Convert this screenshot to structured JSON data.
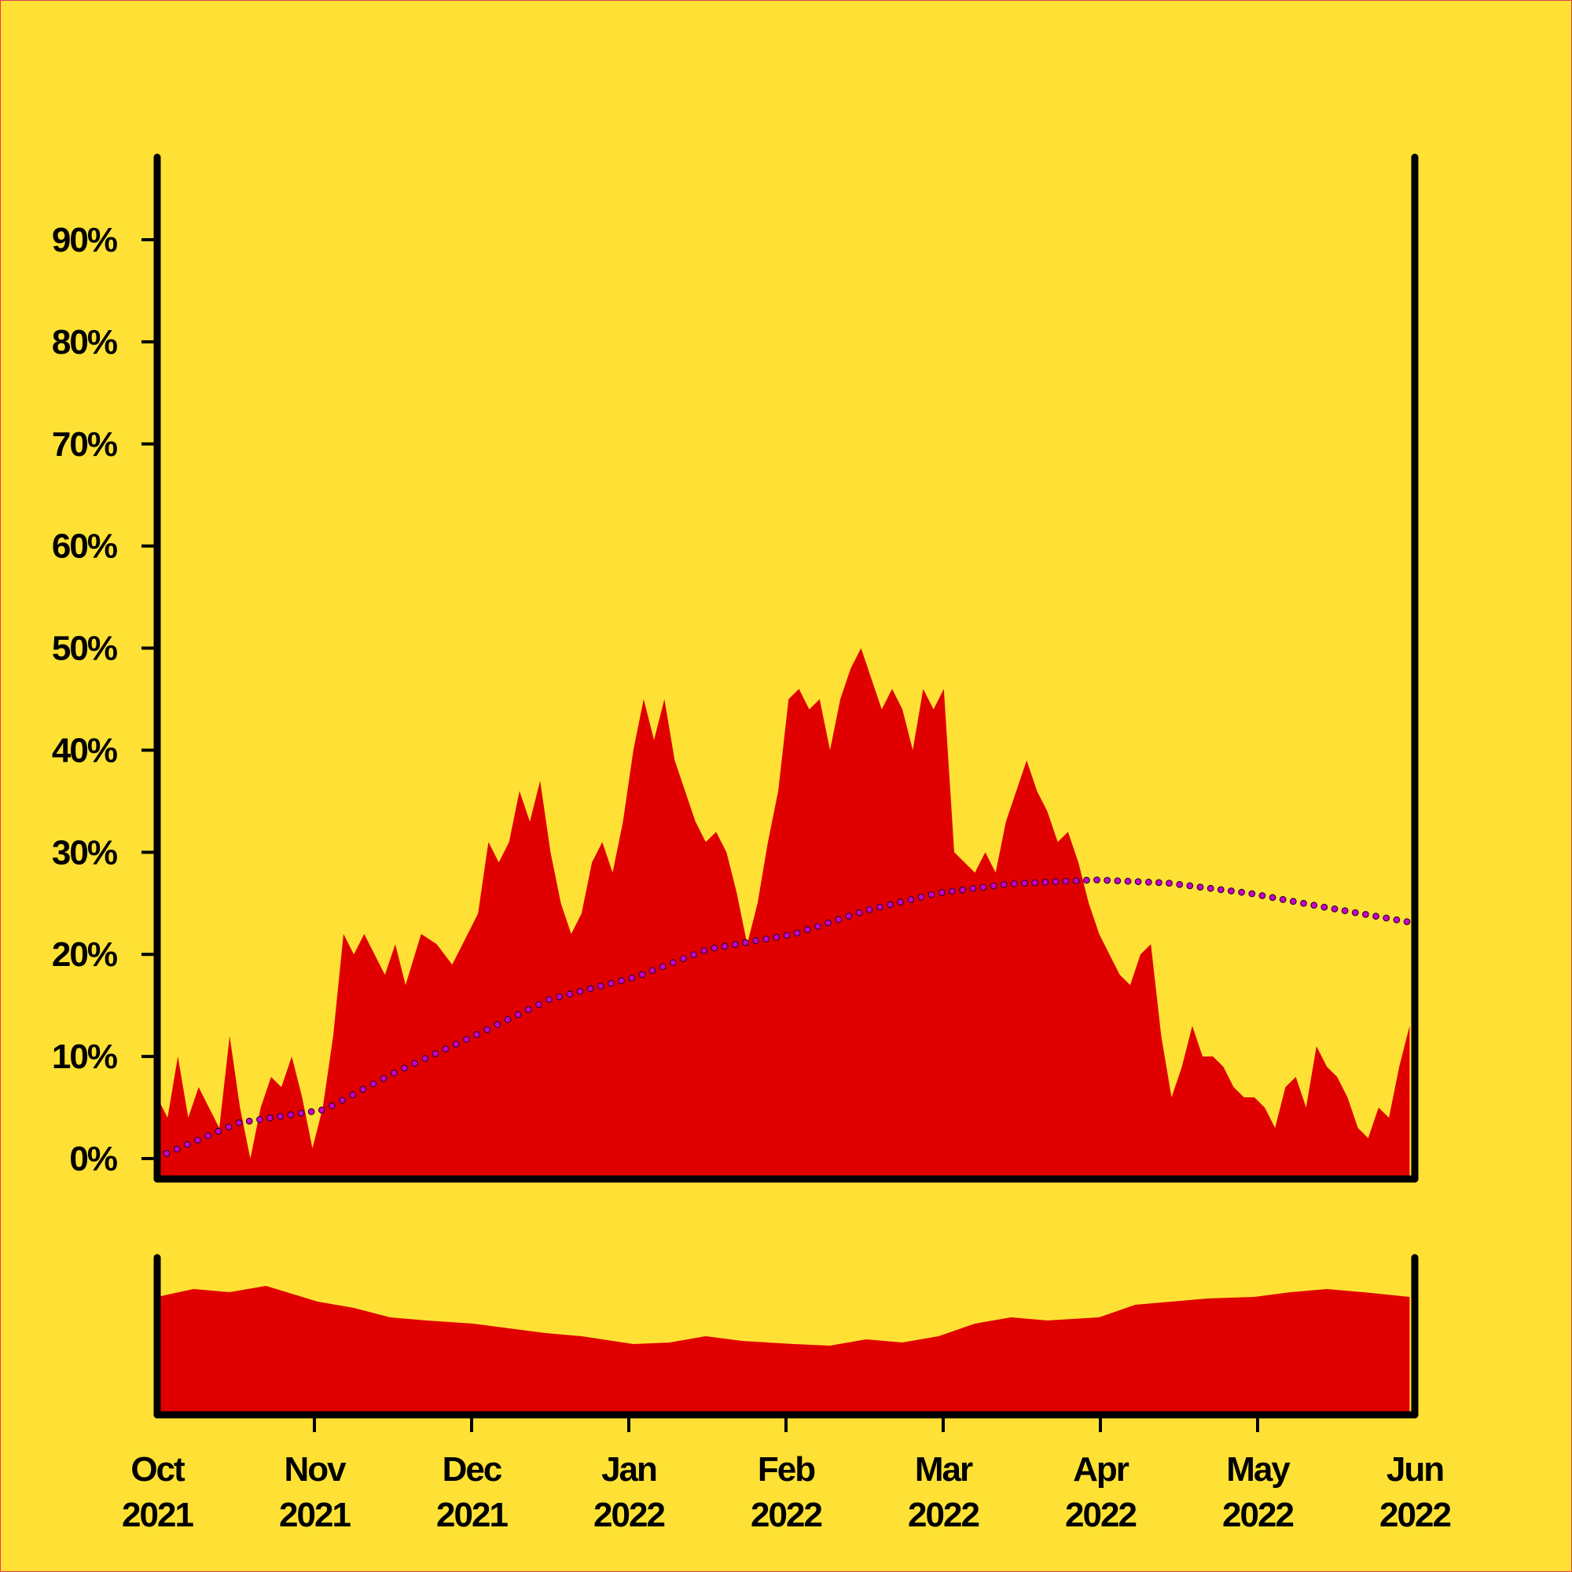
{
  "colors": {
    "background": "#FFE135",
    "area": "#E00000",
    "trend_dot": "#CC00CC",
    "axis": "#000000"
  },
  "chart_data": {
    "type": "area",
    "title": "",
    "xlabel": "",
    "ylabel": "",
    "x_range": [
      "2021-10-01",
      "2022-06-01"
    ],
    "ylim": [
      0,
      100
    ],
    "y_ticks": [
      "0%",
      "10%",
      "20%",
      "30%",
      "40%",
      "50%",
      "60%",
      "70%",
      "80%",
      "90%"
    ],
    "x_ticks": [
      {
        "month": "Oct",
        "year": "2021"
      },
      {
        "month": "Nov",
        "year": "2021"
      },
      {
        "month": "Dec",
        "year": "2021"
      },
      {
        "month": "Jan",
        "year": "2022"
      },
      {
        "month": "Feb",
        "year": "2022"
      },
      {
        "month": "Mar",
        "year": "2022"
      },
      {
        "month": "Apr",
        "year": "2022"
      },
      {
        "month": "May",
        "year": "2022"
      },
      {
        "month": "Jun",
        "year": "2022"
      }
    ],
    "main_series": {
      "x": [
        "2021-10-01",
        "2021-10-03",
        "2021-10-05",
        "2021-10-07",
        "2021-10-09",
        "2021-10-11",
        "2021-10-13",
        "2021-10-15",
        "2021-10-17",
        "2021-10-19",
        "2021-10-21",
        "2021-10-23",
        "2021-10-25",
        "2021-10-27",
        "2021-10-29",
        "2021-10-31",
        "2021-11-02",
        "2021-11-04",
        "2021-11-06",
        "2021-11-08",
        "2021-11-10",
        "2021-11-12",
        "2021-11-14",
        "2021-11-16",
        "2021-11-18",
        "2021-11-21",
        "2021-11-24",
        "2021-11-27",
        "2021-11-30",
        "2021-12-02",
        "2021-12-04",
        "2021-12-06",
        "2021-12-08",
        "2021-12-10",
        "2021-12-12",
        "2021-12-14",
        "2021-12-16",
        "2021-12-18",
        "2021-12-20",
        "2021-12-22",
        "2021-12-24",
        "2021-12-26",
        "2021-12-28",
        "2021-12-30",
        "2022-01-01",
        "2022-01-03",
        "2022-01-05",
        "2022-01-07",
        "2022-01-09",
        "2022-01-11",
        "2022-01-13",
        "2022-01-15",
        "2022-01-17",
        "2022-01-19",
        "2022-01-21",
        "2022-01-23",
        "2022-01-25",
        "2022-01-27",
        "2022-01-29",
        "2022-01-31",
        "2022-02-02",
        "2022-02-04",
        "2022-02-06",
        "2022-02-08",
        "2022-02-10",
        "2022-02-12",
        "2022-02-14",
        "2022-02-16",
        "2022-02-18",
        "2022-02-20",
        "2022-02-22",
        "2022-02-24",
        "2022-02-26",
        "2022-02-28",
        "2022-03-02",
        "2022-03-04",
        "2022-03-06",
        "2022-03-08",
        "2022-03-10",
        "2022-03-12",
        "2022-03-14",
        "2022-03-16",
        "2022-03-18",
        "2022-03-20",
        "2022-03-22",
        "2022-03-24",
        "2022-03-26",
        "2022-03-28",
        "2022-03-30",
        "2022-04-01",
        "2022-04-03",
        "2022-04-05",
        "2022-04-07",
        "2022-04-09",
        "2022-04-11",
        "2022-04-13",
        "2022-04-15",
        "2022-04-17",
        "2022-04-19",
        "2022-04-21",
        "2022-04-23",
        "2022-04-25",
        "2022-04-27",
        "2022-04-29",
        "2022-05-01",
        "2022-05-03",
        "2022-05-05",
        "2022-05-07",
        "2022-05-09",
        "2022-05-11",
        "2022-05-13",
        "2022-05-15",
        "2022-05-17",
        "2022-05-19",
        "2022-05-21",
        "2022-05-23",
        "2022-05-25",
        "2022-05-27",
        "2022-05-29",
        "2022-05-31"
      ],
      "y": [
        6,
        4,
        10,
        4,
        7,
        5,
        3,
        12,
        5,
        0,
        5,
        8,
        7,
        10,
        6,
        1,
        5,
        12,
        22,
        20,
        22,
        20,
        18,
        21,
        17,
        22,
        21,
        19,
        22,
        24,
        31,
        29,
        31,
        36,
        33,
        37,
        30,
        25,
        22,
        24,
        29,
        31,
        28,
        33,
        40,
        45,
        41,
        45,
        39,
        36,
        33,
        31,
        32,
        30,
        26,
        21,
        25,
        31,
        36,
        45,
        46,
        44,
        45,
        40,
        45,
        48,
        50,
        47,
        44,
        46,
        44,
        40,
        46,
        44,
        46,
        30,
        29,
        28,
        30,
        28,
        33,
        36,
        39,
        36,
        34,
        31,
        32,
        29,
        25,
        22,
        20,
        18,
        17,
        20,
        21,
        12,
        6,
        9,
        13,
        10,
        10,
        9,
        7,
        6,
        6,
        5,
        3,
        7,
        8,
        5,
        11,
        9,
        8,
        6,
        3,
        2,
        5,
        4,
        9,
        13
      ]
    },
    "trend_series": {
      "x": [
        "2021-10-01",
        "2021-10-15",
        "2021-11-01",
        "2021-11-15",
        "2021-12-01",
        "2021-12-15",
        "2022-01-01",
        "2022-01-15",
        "2022-02-01",
        "2022-02-15",
        "2022-03-01",
        "2022-03-15",
        "2022-04-01",
        "2022-04-15",
        "2022-05-01",
        "2022-05-15",
        "2022-06-01"
      ],
      "y": [
        0.5,
        3.5,
        4.8,
        8.5,
        12.2,
        15.6,
        17.8,
        20.5,
        22.0,
        24.3,
        26.0,
        26.9,
        27.3,
        27.0,
        26.0,
        24.7,
        23.2
      ]
    },
    "bottom_series": {
      "x": [
        "2021-10-01",
        "2021-10-08",
        "2021-10-15",
        "2021-10-22",
        "2021-11-01",
        "2021-11-08",
        "2021-11-15",
        "2021-11-22",
        "2021-12-01",
        "2021-12-08",
        "2021-12-15",
        "2021-12-22",
        "2022-01-01",
        "2022-01-08",
        "2022-01-15",
        "2022-01-22",
        "2022-02-01",
        "2022-02-08",
        "2022-02-15",
        "2022-02-22",
        "2022-03-01",
        "2022-03-08",
        "2022-03-15",
        "2022-03-22",
        "2022-04-01",
        "2022-04-08",
        "2022-04-15",
        "2022-04-22",
        "2022-05-01",
        "2022-05-08",
        "2022-05-15",
        "2022-05-22",
        "2022-05-31"
      ],
      "y": [
        0.75,
        0.8,
        0.78,
        0.82,
        0.72,
        0.68,
        0.62,
        0.6,
        0.58,
        0.55,
        0.52,
        0.5,
        0.45,
        0.46,
        0.5,
        0.47,
        0.45,
        0.44,
        0.48,
        0.46,
        0.5,
        0.58,
        0.62,
        0.6,
        0.62,
        0.7,
        0.72,
        0.74,
        0.75,
        0.78,
        0.8,
        0.78,
        0.75
      ]
    }
  }
}
